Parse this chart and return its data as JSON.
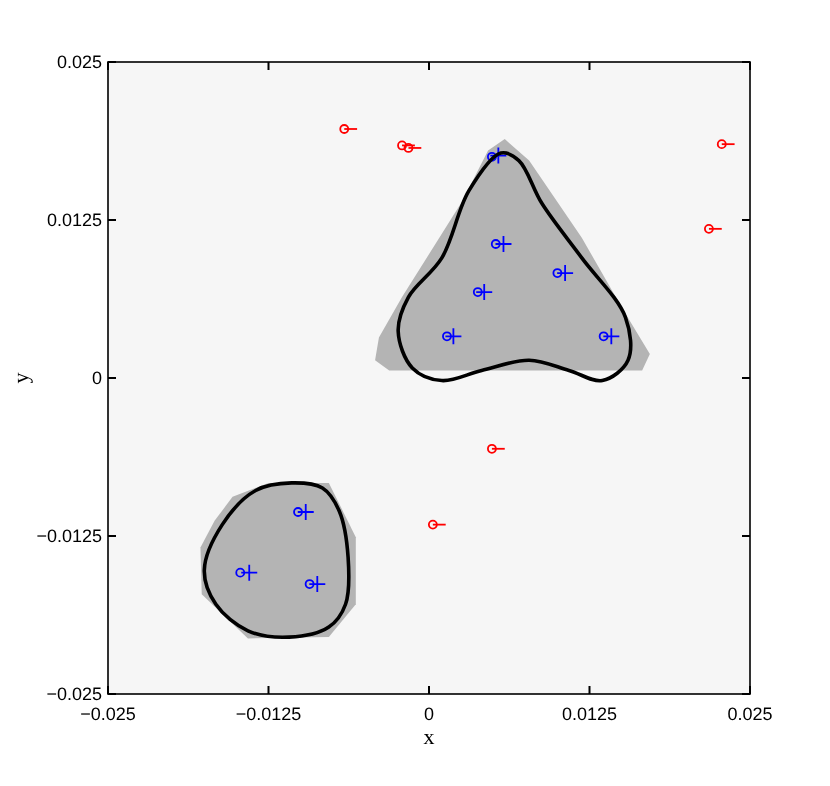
{
  "chart_data": {
    "type": "scatter",
    "xlabel": "x",
    "ylabel": "y",
    "xlim": [
      -0.025,
      0.025
    ],
    "ylim": [
      -0.025,
      0.025
    ],
    "xticks": [
      {
        "value": -0.025,
        "label": "−0.025"
      },
      {
        "value": -0.0125,
        "label": "−0.0125"
      },
      0,
      0.0125,
      0.025
    ],
    "yticks": [
      {
        "value": -0.025,
        "label": "−0.025"
      },
      {
        "value": -0.0125,
        "label": "−0.0125"
      },
      0,
      0.0125,
      0.025
    ],
    "grid": false,
    "series": [
      {
        "type": "area",
        "color": "#b4b4b4",
        "x": [
          0.0059,
          0.0046,
          0.0026,
          -0.0021,
          -0.0039,
          -0.0042,
          -0.0031,
          0.0166,
          0.0172,
          0.015,
          0.0119,
          0.0078,
          0.0059
        ],
        "values": [
          0.0189,
          0.018,
          0.014,
          0.0064,
          0.0032,
          0.0014,
          0.0006,
          0.0006,
          0.0019,
          0.0056,
          0.0111,
          0.0172,
          0.0189
        ]
      },
      {
        "type": "area",
        "color": "#b4b4b4",
        "x": [
          -0.0153,
          -0.0167,
          -0.0178,
          -0.0177,
          -0.0141,
          -0.0078,
          -0.0057,
          -0.0057,
          -0.0078,
          -0.0125,
          -0.0153
        ],
        "values": [
          -0.0094,
          -0.0113,
          -0.0134,
          -0.0171,
          -0.0206,
          -0.0205,
          -0.0179,
          -0.0126,
          -0.0083,
          -0.0083,
          -0.0094
        ]
      },
      {
        "color": "#ff0000",
        "marker": "circle",
        "x": [
          -0.0066,
          -0.0021,
          -0.0016,
          0.0228,
          0.0218,
          0.0049,
          0.0003
        ],
        "values": [
          0.0197,
          0.0184,
          0.0182,
          0.0185,
          0.0118,
          -0.0056,
          -0.0116
        ],
        "xerrors": [
          [
            -0.0066,
            -0.0056
          ],
          [
            -0.0021,
            -0.0011
          ],
          [
            -0.0016,
            -0.0006
          ],
          [
            0.0228,
            0.0238
          ],
          [
            0.0218,
            0.0228
          ],
          [
            0.0049,
            0.0059
          ],
          [
            0.0003,
            0.0013
          ]
        ]
      },
      {
        "color": "#0000ff",
        "marker": "circle",
        "x": [
          0.0049,
          0.0052,
          0.01,
          0.0038,
          0.0014,
          0.0136,
          -0.0102,
          -0.0147,
          -0.0093
        ],
        "values": [
          0.0175,
          0.0106,
          0.0083,
          0.0068,
          0.0033,
          0.0033,
          -0.0106,
          -0.0154,
          -0.0163
        ]
      },
      {
        "color": "#0000ff",
        "marker": "cross",
        "x": [
          0.0054,
          0.0058,
          0.0106,
          0.0043,
          0.0019,
          0.0142,
          -0.0096,
          -0.014,
          -0.0087
        ],
        "values": [
          0.0176,
          0.0106,
          0.0083,
          0.0068,
          0.0033,
          0.0033,
          -0.0106,
          -0.0154,
          -0.0163
        ]
      }
    ]
  }
}
